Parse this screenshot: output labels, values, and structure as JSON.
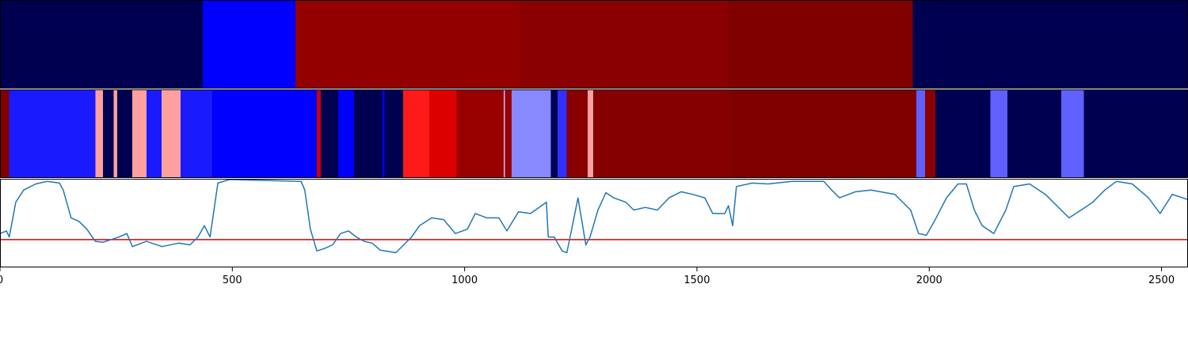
{
  "chart_data": [
    {
      "type": "band",
      "xlim": [
        0,
        2557
      ],
      "edges": [
        0,
        436,
        636,
        1118,
        1568,
        1965,
        2557
      ],
      "colors": [
        "#000050",
        "#0000ff",
        "#930000",
        "#8a0000",
        "#800000",
        "#000050"
      ]
    },
    {
      "type": "band",
      "xlim": [
        0,
        2557
      ],
      "edges": [
        0,
        20,
        205,
        222,
        245,
        252,
        285,
        315,
        348,
        389,
        457,
        682,
        690,
        728,
        762,
        823,
        828,
        868,
        924,
        983,
        1084,
        1087,
        1101,
        1186,
        1200,
        1220,
        1265,
        1277,
        1577,
        1972,
        1991,
        2013,
        2132,
        2168,
        2284,
        2333,
        2557
      ],
      "colors": [
        "#800000",
        "#1a1aff",
        "#ffa0a0",
        "#000050",
        "#ffa0a0",
        "#000050",
        "#ffa0a0",
        "#1a1aff",
        "#ffa0a0",
        "#1a1aff",
        "#0000ff",
        "#cc0000",
        "#000050",
        "#0000ff",
        "#000050",
        "#0000ff",
        "#000050",
        "#ff1a1a",
        "#dd0000",
        "#990000",
        "#c0c0ff",
        "#990000",
        "#8888ff",
        "#000050",
        "#3030ff",
        "#880000",
        "#ffa0a0",
        "#850000",
        "#800000",
        "#6060ff",
        "#880000",
        "#000050",
        "#6060ff",
        "#000050",
        "#6060ff",
        "#000050"
      ]
    },
    {
      "type": "line",
      "xlim": [
        0,
        2557
      ],
      "ylim": [
        0,
        1
      ],
      "color": "#1f77b4",
      "hline": 0.31,
      "hline_color": "#e00000",
      "xticks": [
        0,
        500,
        1000,
        1500,
        2000,
        2500
      ],
      "x": [
        0,
        14,
        20,
        34,
        51,
        77,
        102,
        128,
        136,
        153,
        170,
        187,
        205,
        222,
        256,
        273,
        285,
        315,
        349,
        384,
        409,
        426,
        440,
        452,
        469,
        494,
        648,
        656,
        668,
        682,
        699,
        716,
        733,
        750,
        767,
        784,
        801,
        818,
        852,
        886,
        903,
        929,
        955,
        980,
        1006,
        1023,
        1048,
        1074,
        1091,
        1116,
        1142,
        1176,
        1180,
        1193,
        1210,
        1220,
        1227,
        1244,
        1261,
        1270,
        1287,
        1304,
        1321,
        1347,
        1364,
        1389,
        1415,
        1440,
        1466,
        1491,
        1517,
        1534,
        1560,
        1568,
        1577,
        1585,
        1619,
        1653,
        1705,
        1773,
        1790,
        1807,
        1841,
        1875,
        1926,
        1960,
        1977,
        1994,
        2011,
        2037,
        2062,
        2080,
        2097,
        2114,
        2139,
        2165,
        2182,
        2216,
        2250,
        2284,
        2301,
        2327,
        2352,
        2378,
        2403,
        2437,
        2472,
        2497,
        2523,
        2557
      ],
      "values": [
        0.38,
        0.41,
        0.34,
        0.74,
        0.88,
        0.95,
        0.98,
        0.96,
        0.88,
        0.56,
        0.52,
        0.43,
        0.29,
        0.28,
        0.34,
        0.38,
        0.23,
        0.29,
        0.23,
        0.27,
        0.25,
        0.34,
        0.47,
        0.34,
        0.96,
        1.0,
        0.98,
        0.88,
        0.43,
        0.18,
        0.21,
        0.25,
        0.38,
        0.41,
        0.34,
        0.29,
        0.27,
        0.19,
        0.16,
        0.34,
        0.47,
        0.56,
        0.54,
        0.38,
        0.43,
        0.61,
        0.56,
        0.56,
        0.41,
        0.63,
        0.61,
        0.74,
        0.34,
        0.34,
        0.18,
        0.16,
        0.34,
        0.79,
        0.25,
        0.34,
        0.65,
        0.85,
        0.79,
        0.74,
        0.65,
        0.68,
        0.65,
        0.79,
        0.86,
        0.83,
        0.79,
        0.61,
        0.61,
        0.7,
        0.47,
        0.92,
        0.96,
        0.95,
        0.98,
        0.98,
        0.88,
        0.79,
        0.86,
        0.88,
        0.83,
        0.65,
        0.38,
        0.36,
        0.52,
        0.79,
        0.95,
        0.95,
        0.65,
        0.47,
        0.38,
        0.65,
        0.92,
        0.95,
        0.83,
        0.65,
        0.56,
        0.65,
        0.74,
        0.88,
        0.98,
        0.95,
        0.79,
        0.61,
        0.83,
        0.77
      ]
    }
  ]
}
